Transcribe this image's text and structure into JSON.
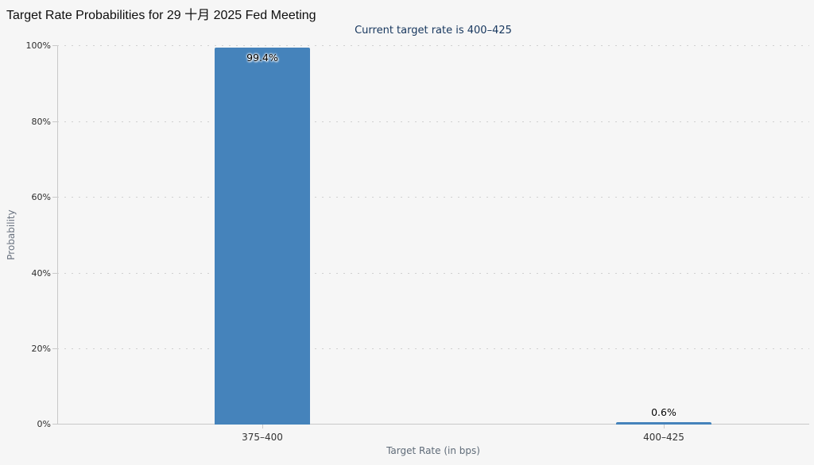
{
  "chart_data": {
    "type": "bar",
    "title": "Target Rate Probabilities for 29 十月 2025 Fed Meeting",
    "subtitle": "Current target rate is 400–425",
    "categories": [
      "375–400",
      "400–425"
    ],
    "values": [
      99.4,
      0.6
    ],
    "value_labels": [
      "99.4%",
      "0.6%"
    ],
    "xlabel": "Target Rate (in bps)",
    "ylabel": "Probability",
    "ylim": [
      0,
      100
    ],
    "ytick_step": 20,
    "ytick_labels": [
      "0%",
      "20%",
      "40%",
      "60%",
      "80%",
      "100%"
    ],
    "grid": "horizontal-dotted",
    "legend": "none",
    "bar_color": "#4583bb"
  },
  "colors": {
    "background": "#f6f6f6",
    "bar": "#4583bb",
    "title_text": "#0e0e0e",
    "subtitle_text": "#16365d",
    "axis_line": "#c9c9c9",
    "gridline": "#d0d0d0",
    "tick_text": "#2d2d2d",
    "axis_title_text": "#6a7380"
  }
}
